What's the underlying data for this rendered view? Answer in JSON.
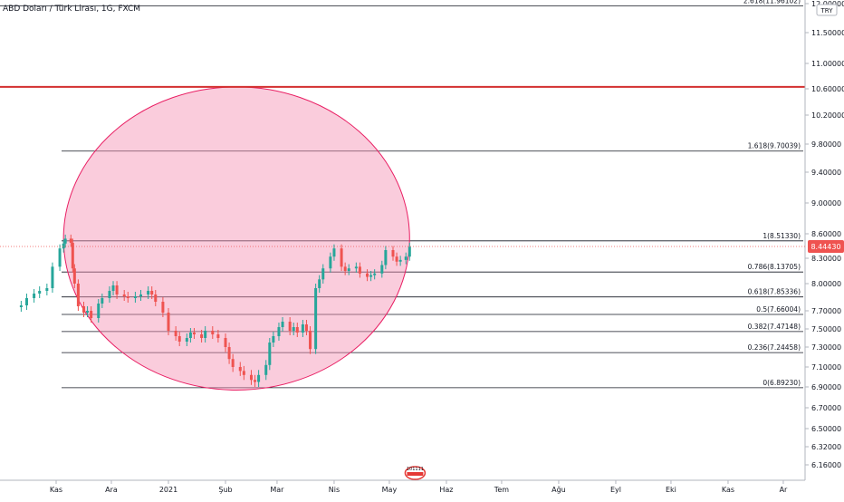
{
  "chart_data": {
    "type": "candlestick",
    "title": "ABD Doları / Türk Lirası, 1G, FXCM",
    "currency_label": "TRY",
    "ylim": [
      6.0,
      12.0
    ],
    "y_ticks": [
      "12.00000",
      "11.50000",
      "11.00000",
      "10.60000",
      "10.20000",
      "9.80000",
      "9.40000",
      "9.00000",
      "8.60000",
      "8.30000",
      "8.00000",
      "7.70000",
      "7.50000",
      "7.30000",
      "7.10000",
      "6.90000",
      "6.70000",
      "6.50000",
      "6.32000",
      "6.16000"
    ],
    "x_ticks": [
      {
        "label": "Kas",
        "date": "2020-11-01"
      },
      {
        "label": "Ara",
        "date": "2020-12-01"
      },
      {
        "label": "2021",
        "date": "2021-01-01"
      },
      {
        "label": "Şub",
        "date": "2021-02-01"
      },
      {
        "label": "Mar",
        "date": "2021-03-01"
      },
      {
        "label": "Nis",
        "date": "2021-04-01"
      },
      {
        "label": "May",
        "date": "2021-05-01"
      },
      {
        "label": "Haz",
        "date": "2021-06-01"
      },
      {
        "label": "Tem",
        "date": "2021-07-01"
      },
      {
        "label": "Ağu",
        "date": "2021-08-01"
      },
      {
        "label": "Eyl",
        "date": "2021-09-01"
      },
      {
        "label": "Eki",
        "date": "2021-10-01"
      },
      {
        "label": "Kas",
        "date": "2021-11-01"
      },
      {
        "label": "Ar",
        "date": "2021-12-01"
      }
    ],
    "last_price": "8.44430",
    "last_price_value": 8.4443,
    "up_color": "#26a69a",
    "down_color": "#ef5350",
    "fib_levels": [
      {
        "label": "2.618(11.96102)",
        "value": 11.96102
      },
      {
        "label": "1.618(9.70039)",
        "value": 9.70039
      },
      {
        "label": "1(8.51330)",
        "value": 8.5133
      },
      {
        "label": "0.786(8.13705)",
        "value": 8.13705
      },
      {
        "label": "0.618(7.85336)",
        "value": 7.85336
      },
      {
        "label": "0.5(7.66004)",
        "value": 7.66004
      },
      {
        "label": "0.382(7.47148)",
        "value": 7.47148
      },
      {
        "label": "0.236(7.24458)",
        "value": 7.24458
      },
      {
        "label": "0(6.89230)",
        "value": 6.8923
      }
    ],
    "horizontal_line": {
      "value": 10.63,
      "color": "#d32f2f"
    },
    "ellipse_highlight": {
      "start_date": "2020-11-05",
      "end_date": "2021-05-12",
      "top": 10.63,
      "bottom": 6.87,
      "color": "#f48fb1"
    },
    "points": [
      [
        "2020-10-13",
        7.76
      ],
      [
        "2020-10-16",
        7.84
      ],
      [
        "2020-10-20",
        7.89
      ],
      [
        "2020-10-23",
        7.92
      ],
      [
        "2020-10-27",
        7.95
      ],
      [
        "2020-10-30",
        8.2
      ],
      [
        "2020-11-03",
        8.42
      ],
      [
        "2020-11-05",
        8.48
      ],
      [
        "2020-11-06",
        8.54
      ],
      [
        "2020-11-09",
        8.49
      ],
      [
        "2020-11-10",
        8.18
      ],
      [
        "2020-11-11",
        8.0
      ],
      [
        "2020-11-13",
        7.75
      ],
      [
        "2020-11-16",
        7.68
      ],
      [
        "2020-11-18",
        7.7
      ],
      [
        "2020-11-20",
        7.62
      ],
      [
        "2020-11-24",
        7.78
      ],
      [
        "2020-11-26",
        7.84
      ],
      [
        "2020-11-30",
        7.92
      ],
      [
        "2020-12-02",
        7.98
      ],
      [
        "2020-12-04",
        7.88
      ],
      [
        "2020-12-08",
        7.86
      ],
      [
        "2020-12-10",
        7.84
      ],
      [
        "2020-12-14",
        7.86
      ],
      [
        "2020-12-17",
        7.88
      ],
      [
        "2020-12-21",
        7.92
      ],
      [
        "2020-12-23",
        7.88
      ],
      [
        "2020-12-25",
        7.8
      ],
      [
        "2020-12-29",
        7.68
      ],
      [
        "2021-01-01",
        7.48
      ],
      [
        "2021-01-05",
        7.42
      ],
      [
        "2021-01-07",
        7.36
      ],
      [
        "2021-01-11",
        7.4
      ],
      [
        "2021-01-13",
        7.46
      ],
      [
        "2021-01-15",
        7.44
      ],
      [
        "2021-01-19",
        7.4
      ],
      [
        "2021-01-21",
        7.48
      ],
      [
        "2021-01-25",
        7.44
      ],
      [
        "2021-01-28",
        7.4
      ],
      [
        "2021-02-01",
        7.3
      ],
      [
        "2021-02-03",
        7.18
      ],
      [
        "2021-02-05",
        7.1
      ],
      [
        "2021-02-09",
        7.06
      ],
      [
        "2021-02-11",
        7.02
      ],
      [
        "2021-02-15",
        6.97
      ],
      [
        "2021-02-17",
        6.95
      ],
      [
        "2021-02-19",
        7.02
      ],
      [
        "2021-02-23",
        7.12
      ],
      [
        "2021-02-25",
        7.35
      ],
      [
        "2021-02-27",
        7.42
      ],
      [
        "2021-03-02",
        7.52
      ],
      [
        "2021-03-04",
        7.58
      ],
      [
        "2021-03-08",
        7.48
      ],
      [
        "2021-03-10",
        7.52
      ],
      [
        "2021-03-12",
        7.46
      ],
      [
        "2021-03-15",
        7.55
      ],
      [
        "2021-03-17",
        7.48
      ],
      [
        "2021-03-19",
        7.28
      ],
      [
        "2021-03-22",
        7.95
      ],
      [
        "2021-03-24",
        8.05
      ],
      [
        "2021-03-26",
        8.18
      ],
      [
        "2021-03-30",
        8.32
      ],
      [
        "2021-04-01",
        8.42
      ],
      [
        "2021-04-05",
        8.2
      ],
      [
        "2021-04-07",
        8.15
      ],
      [
        "2021-04-09",
        8.18
      ],
      [
        "2021-04-13",
        8.2
      ],
      [
        "2021-04-15",
        8.12
      ],
      [
        "2021-04-19",
        8.08
      ],
      [
        "2021-04-21",
        8.1
      ],
      [
        "2021-04-23",
        8.12
      ],
      [
        "2021-04-27",
        8.22
      ],
      [
        "2021-04-29",
        8.4
      ],
      [
        "2021-05-03",
        8.32
      ],
      [
        "2021-05-05",
        8.26
      ],
      [
        "2021-05-07",
        8.28
      ],
      [
        "2021-05-10",
        8.32
      ],
      [
        "2021-05-12",
        8.44
      ]
    ],
    "watermark_text": "101111"
  }
}
